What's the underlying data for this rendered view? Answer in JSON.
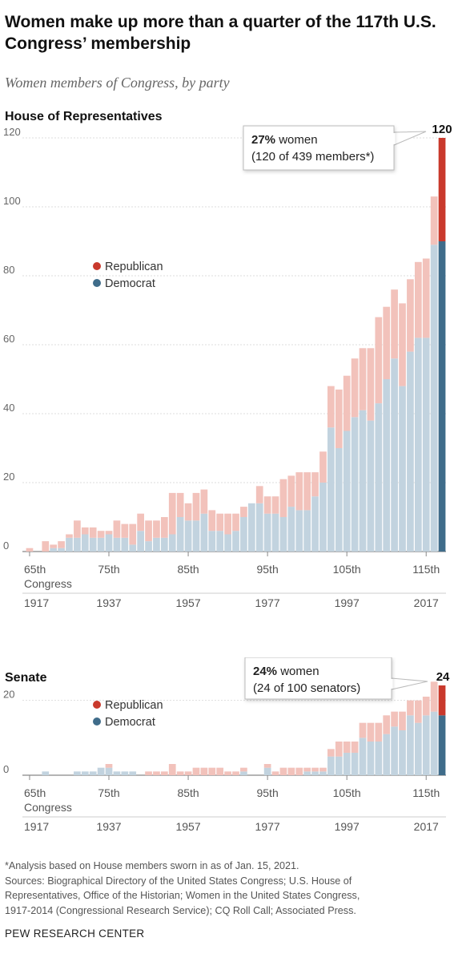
{
  "title": "Women make up more than a quarter of the 117th U.S. Congress’ membership",
  "subtitle": "Women members of Congress, by party",
  "colors": {
    "republican": "#c9392c",
    "democrat": "#3f6c8a",
    "republican_light": "#f2c2bb",
    "democrat_light": "#c2d3df",
    "axis": "#999999",
    "text": "#333333"
  },
  "chart_data": [
    {
      "type": "bar",
      "stacked": true,
      "title": "House of Representatives",
      "x_label": "Congress",
      "categories": [
        "65th",
        "66th",
        "67th",
        "68th",
        "69th",
        "70th",
        "71st",
        "72nd",
        "73rd",
        "74th",
        "75th",
        "76th",
        "77th",
        "78th",
        "79th",
        "80th",
        "81st",
        "82nd",
        "83rd",
        "84th",
        "85th",
        "86th",
        "87th",
        "88th",
        "89th",
        "90th",
        "91st",
        "92nd",
        "93rd",
        "94th",
        "95th",
        "96th",
        "97th",
        "98th",
        "99th",
        "100th",
        "101st",
        "102nd",
        "103rd",
        "104th",
        "105th",
        "106th",
        "107th",
        "108th",
        "109th",
        "110th",
        "111th",
        "112th",
        "113th",
        "114th",
        "115th",
        "116th",
        "117th"
      ],
      "series": [
        {
          "name": "Democrat",
          "values": [
            0,
            0,
            0,
            1,
            1,
            4,
            4,
            5,
            4,
            4,
            5,
            4,
            4,
            2,
            6,
            3,
            4,
            4,
            5,
            10,
            9,
            9,
            11,
            6,
            6,
            5,
            6,
            10,
            14,
            14,
            11,
            11,
            10,
            13,
            12,
            12,
            16,
            20,
            36,
            30,
            35,
            39,
            41,
            38,
            43,
            50,
            56,
            48,
            58,
            62,
            62,
            89,
            90
          ]
        },
        {
          "name": "Republican",
          "values": [
            1,
            0,
            3,
            1,
            2,
            1,
            5,
            2,
            3,
            2,
            1,
            5,
            4,
            6,
            5,
            6,
            5,
            6,
            12,
            7,
            5,
            8,
            7,
            6,
            5,
            6,
            5,
            3,
            0,
            5,
            5,
            5,
            11,
            9,
            11,
            11,
            7,
            9,
            12,
            17,
            16,
            17,
            18,
            21,
            25,
            21,
            20,
            24,
            21,
            22,
            23,
            14,
            30
          ]
        }
      ],
      "totals": [
        1,
        0,
        3,
        2,
        3,
        5,
        9,
        7,
        7,
        6,
        6,
        9,
        8,
        8,
        11,
        9,
        9,
        10,
        17,
        17,
        14,
        17,
        18,
        12,
        11,
        11,
        11,
        13,
        14,
        19,
        16,
        16,
        21,
        22,
        23,
        23,
        23,
        29,
        48,
        47,
        51,
        56,
        59,
        59,
        68,
        71,
        76,
        72,
        79,
        84,
        85,
        103,
        120
      ],
      "y_ticks": [
        0,
        20,
        40,
        60,
        80,
        100,
        120
      ],
      "ylim": [
        0,
        120
      ],
      "x_ticks": [
        {
          "congress": "65th",
          "label": "65th",
          "sublabel": "Congress",
          "year": "1917"
        },
        {
          "congress": "75th",
          "label": "75th",
          "sublabel": "",
          "year": "1937"
        },
        {
          "congress": "85th",
          "label": "85th",
          "sublabel": "",
          "year": "1957"
        },
        {
          "congress": "95th",
          "label": "95th",
          "sublabel": "",
          "year": "1977"
        },
        {
          "congress": "105th",
          "label": "105th",
          "sublabel": "",
          "year": "1997"
        },
        {
          "congress": "115th",
          "label": "115th",
          "sublabel": "",
          "year": "2017"
        }
      ],
      "legend": [
        {
          "name": "Republican",
          "color": "#c9392c"
        },
        {
          "name": "Democrat",
          "color": "#3f6c8a"
        }
      ],
      "legend_position": "upper-left",
      "end_label": "120",
      "callout_bold": "27%",
      "callout_line1": " women",
      "callout_line2": "(120 of 439 members*)"
    },
    {
      "type": "bar",
      "stacked": true,
      "title": "Senate",
      "x_label": "Congress",
      "categories": [
        "65th",
        "66th",
        "67th",
        "68th",
        "69th",
        "70th",
        "71st",
        "72nd",
        "73rd",
        "74th",
        "75th",
        "76th",
        "77th",
        "78th",
        "79th",
        "80th",
        "81st",
        "82nd",
        "83rd",
        "84th",
        "85th",
        "86th",
        "87th",
        "88th",
        "89th",
        "90th",
        "91st",
        "92nd",
        "93rd",
        "94th",
        "95th",
        "96th",
        "97th",
        "98th",
        "99th",
        "100th",
        "101st",
        "102nd",
        "103rd",
        "104th",
        "105th",
        "106th",
        "107th",
        "108th",
        "109th",
        "110th",
        "111th",
        "112th",
        "113th",
        "114th",
        "115th",
        "116th",
        "117th"
      ],
      "series": [
        {
          "name": "Democrat",
          "values": [
            0,
            0,
            1,
            0,
            0,
            0,
            1,
            1,
            1,
            2,
            2,
            1,
            1,
            1,
            0,
            0,
            0,
            0,
            0,
            0,
            0,
            0,
            0,
            0,
            0,
            0,
            0,
            1,
            0,
            0,
            2,
            0,
            0,
            0,
            0,
            1,
            1,
            1,
            5,
            5,
            6,
            6,
            10,
            9,
            9,
            11,
            13,
            12,
            16,
            14,
            16,
            17,
            16
          ]
        },
        {
          "name": "Republican",
          "values": [
            0,
            0,
            0,
            0,
            0,
            0,
            0,
            0,
            0,
            0,
            1,
            0,
            0,
            0,
            0,
            1,
            1,
            1,
            3,
            1,
            1,
            2,
            2,
            2,
            2,
            1,
            1,
            1,
            0,
            0,
            1,
            1,
            2,
            2,
            2,
            1,
            1,
            1,
            2,
            4,
            3,
            3,
            4,
            5,
            5,
            5,
            4,
            5,
            4,
            6,
            5,
            8,
            8
          ]
        }
      ],
      "totals": [
        0,
        0,
        1,
        0,
        0,
        0,
        1,
        1,
        1,
        2,
        3,
        1,
        1,
        1,
        0,
        1,
        1,
        1,
        3,
        1,
        1,
        2,
        2,
        2,
        2,
        1,
        1,
        2,
        0,
        0,
        3,
        1,
        2,
        2,
        2,
        2,
        2,
        2,
        7,
        9,
        9,
        9,
        14,
        14,
        14,
        16,
        17,
        17,
        20,
        20,
        21,
        25,
        24
      ],
      "y_ticks": [
        0,
        20
      ],
      "ylim": [
        0,
        24
      ],
      "x_ticks": [
        {
          "congress": "65th",
          "label": "65th",
          "sublabel": "Congress",
          "year": "1917"
        },
        {
          "congress": "75th",
          "label": "75th",
          "sublabel": "",
          "year": "1937"
        },
        {
          "congress": "85th",
          "label": "85th",
          "sublabel": "",
          "year": "1957"
        },
        {
          "congress": "95th",
          "label": "95th",
          "sublabel": "",
          "year": "1977"
        },
        {
          "congress": "105th",
          "label": "105th",
          "sublabel": "",
          "year": "1997"
        },
        {
          "congress": "115th",
          "label": "115th",
          "sublabel": "",
          "year": "2017"
        }
      ],
      "legend": [
        {
          "name": "Republican",
          "color": "#c9392c"
        },
        {
          "name": "Democrat",
          "color": "#3f6c8a"
        }
      ],
      "legend_position": "upper-left",
      "end_label": "24",
      "callout_bold": "24%",
      "callout_line1": " women",
      "callout_line2": "(24 of 100 senators)"
    }
  ],
  "footnote": [
    "*Analysis based on House members sworn in as of Jan. 15, 2021.",
    "Sources: Biographical Directory of the United States Congress; U.S. House of",
    "Representatives, Office of the Historian; Women in the United States Congress,",
    "1917-2014 (Congressional Research Service); CQ Roll Call; Associated Press."
  ],
  "source": "PEW RESEARCH CENTER"
}
